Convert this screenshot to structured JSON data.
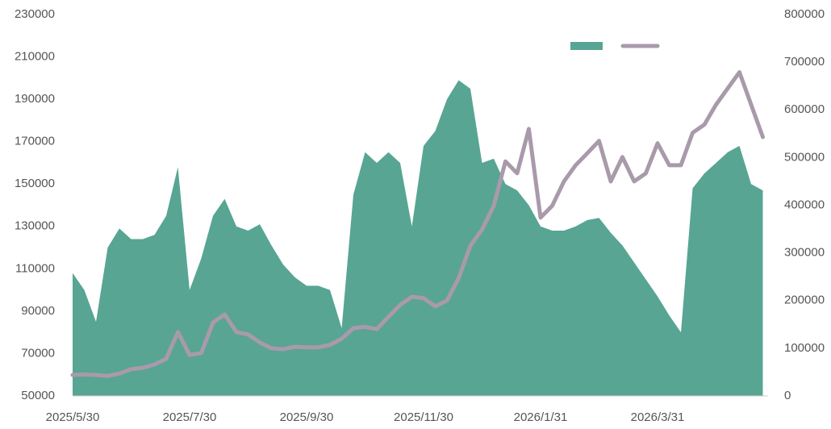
{
  "chart_data": {
    "type": "area_line",
    "categories": [
      "2025/5/30",
      null,
      null,
      null,
      null,
      null,
      null,
      null,
      null,
      null,
      "2025/7/30",
      null,
      null,
      null,
      null,
      null,
      null,
      null,
      null,
      null,
      "2025/9/30",
      null,
      null,
      null,
      null,
      null,
      null,
      null,
      null,
      null,
      "2025/11/30",
      null,
      null,
      null,
      null,
      null,
      null,
      null,
      null,
      null,
      "2026/1/31",
      null,
      null,
      null,
      null,
      null,
      null,
      null,
      null,
      null,
      "2026/3/31",
      null,
      null,
      null,
      null,
      null,
      null,
      null,
      null,
      null
    ],
    "series": [
      {
        "type": "area",
        "color": "#58a593",
        "values": [
          108000,
          100000,
          85000,
          120000,
          129000,
          124000,
          124000,
          126000,
          135000,
          158000,
          100000,
          115000,
          135000,
          143000,
          130000,
          128000,
          131000,
          121000,
          112000,
          106000,
          102000,
          102000,
          100000,
          82000,
          145000,
          165000,
          160000,
          165000,
          160000,
          130000,
          168000,
          175000,
          190000,
          199000,
          195000,
          160000,
          162000,
          150000,
          147000,
          140000,
          130000,
          128000,
          128000,
          130000,
          133000,
          134000,
          127000,
          121000,
          113000,
          105000,
          97000,
          88000,
          80000,
          148000,
          155000,
          160000,
          165000,
          168000,
          150000,
          147000
        ]
      },
      {
        "type": "line",
        "axis": "y2",
        "color": "#a99aab",
        "values": [
          44000,
          45000,
          44000,
          42000,
          47000,
          56000,
          59000,
          66000,
          78000,
          134000,
          86000,
          90000,
          154000,
          171000,
          134000,
          129000,
          112000,
          100000,
          98000,
          103000,
          102000,
          102000,
          107000,
          120000,
          142000,
          145000,
          140000,
          166000,
          191000,
          208000,
          205000,
          188000,
          200000,
          247000,
          315000,
          349000,
          399000,
          492000,
          467000,
          560000,
          374000,
          399000,
          450000,
          484000,
          509000,
          535000,
          450000,
          501000,
          450000,
          467000,
          530000,
          484000,
          484000,
          552000,
          569000,
          611000,
          645000,
          679000,
          611000,
          543000
        ]
      }
    ],
    "ylim": [
      50000,
      230000
    ],
    "yticks": [
      50000,
      70000,
      90000,
      110000,
      130000,
      150000,
      170000,
      190000,
      210000,
      230000
    ],
    "y2lim": [
      0,
      800000
    ],
    "y2ticks": [
      0,
      100000,
      200000,
      300000,
      400000,
      500000,
      600000,
      700000,
      800000
    ],
    "legend": "upper right"
  }
}
